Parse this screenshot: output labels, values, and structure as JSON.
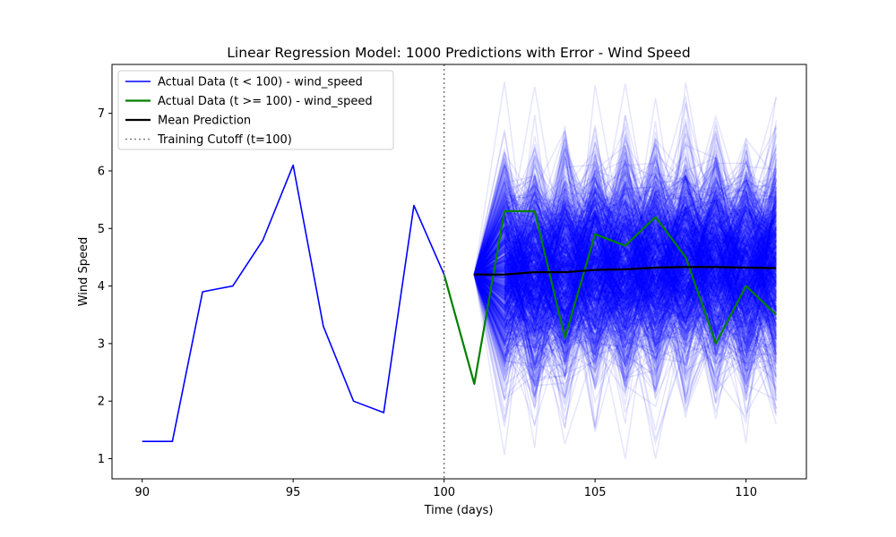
{
  "chart_data": {
    "type": "line",
    "title": "Linear Regression Model: 1000 Predictions with Error - Wind Speed",
    "xlabel": "Time (days)",
    "ylabel": "Wind Speed",
    "xlim": [
      89.0,
      112.0
    ],
    "ylim": [
      0.65,
      7.85
    ],
    "xticks": [
      90,
      95,
      100,
      105,
      110
    ],
    "yticks": [
      1,
      2,
      3,
      4,
      5,
      6,
      7
    ],
    "grid": false,
    "legend_position": "top-left",
    "legend": [
      {
        "label": "Actual Data (t < 100) - wind_speed",
        "color": "#0000ff",
        "style": "solid"
      },
      {
        "label": "Actual Data (t >= 100) - wind_speed",
        "color": "#008000",
        "style": "solid"
      },
      {
        "label": "Mean Prediction",
        "color": "#000000",
        "style": "solid"
      },
      {
        "label": "Training Cutoff (t=100)",
        "color": "#808080",
        "style": "dotted"
      }
    ],
    "series": [
      {
        "name": "Actual Data (t < 100) - wind_speed",
        "color": "#0000ff",
        "x": [
          90,
          91,
          92,
          93,
          94,
          95,
          96,
          97,
          98,
          99,
          100
        ],
        "y": [
          1.3,
          1.3,
          3.9,
          4.0,
          4.8,
          6.1,
          3.3,
          2.0,
          1.8,
          5.4,
          4.2
        ]
      },
      {
        "name": "Actual Data (t >= 100) - wind_speed",
        "color": "#008000",
        "x": [
          100,
          101,
          102,
          103,
          104,
          105,
          106,
          107,
          108,
          109,
          110,
          111
        ],
        "y": [
          4.2,
          2.3,
          5.3,
          5.3,
          3.1,
          4.9,
          4.7,
          5.2,
          4.5,
          3.0,
          4.0,
          3.5
        ]
      },
      {
        "name": "Mean Prediction",
        "color": "#000000",
        "x": [
          101,
          102,
          103,
          104,
          105,
          106,
          107,
          108,
          109,
          110,
          111
        ],
        "y": [
          4.2,
          4.2,
          4.24,
          4.24,
          4.28,
          4.29,
          4.32,
          4.33,
          4.33,
          4.32,
          4.31
        ]
      }
    ],
    "prediction_samples": {
      "count": 1000,
      "color": "#0000ff",
      "opacity": 0.1,
      "x": [
        101,
        102,
        103,
        104,
        105,
        106,
        107,
        108,
        109,
        110,
        111
      ],
      "start_value": 4.2,
      "min": 1.0,
      "max": 7.55
    },
    "cutoff": {
      "x": 100,
      "color": "#808080",
      "style": "dotted"
    }
  }
}
